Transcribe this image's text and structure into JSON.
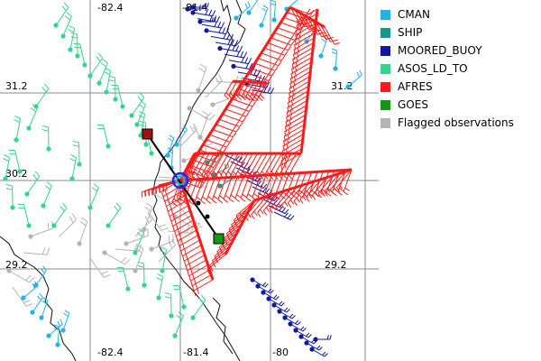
{
  "map": {
    "longitude_labels": [
      {
        "text": "-82.4",
        "row": "top"
      },
      {
        "text": "-81.4",
        "row": "top"
      },
      {
        "text": "-82.4",
        "row": "bottom"
      },
      {
        "text": "-81.4",
        "row": "bottom"
      },
      {
        "text": "-80",
        "row": "bottom"
      }
    ],
    "latitude_labels": [
      {
        "text": "31.2",
        "side": "left"
      },
      {
        "text": "31.2",
        "side": "right"
      },
      {
        "text": "30.2",
        "side": "left"
      },
      {
        "text": "29.2",
        "side": "left"
      },
      {
        "text": "29.2",
        "side": "right"
      }
    ]
  },
  "legend": {
    "items": [
      {
        "label": "CMAN",
        "color": "#1fb4e6"
      },
      {
        "label": "SHIP",
        "color": "#129a8e"
      },
      {
        "label": "MOORED_BUOY",
        "color": "#0f18a0"
      },
      {
        "label": "ASOS_LD_TO",
        "color": "#33d68a"
      },
      {
        "label": "AFRES",
        "color": "#ff1a1a"
      },
      {
        "label": "GOES",
        "color": "#109a10"
      },
      {
        "label": "Flagged observations",
        "color": "#b4b4b4"
      }
    ]
  }
}
